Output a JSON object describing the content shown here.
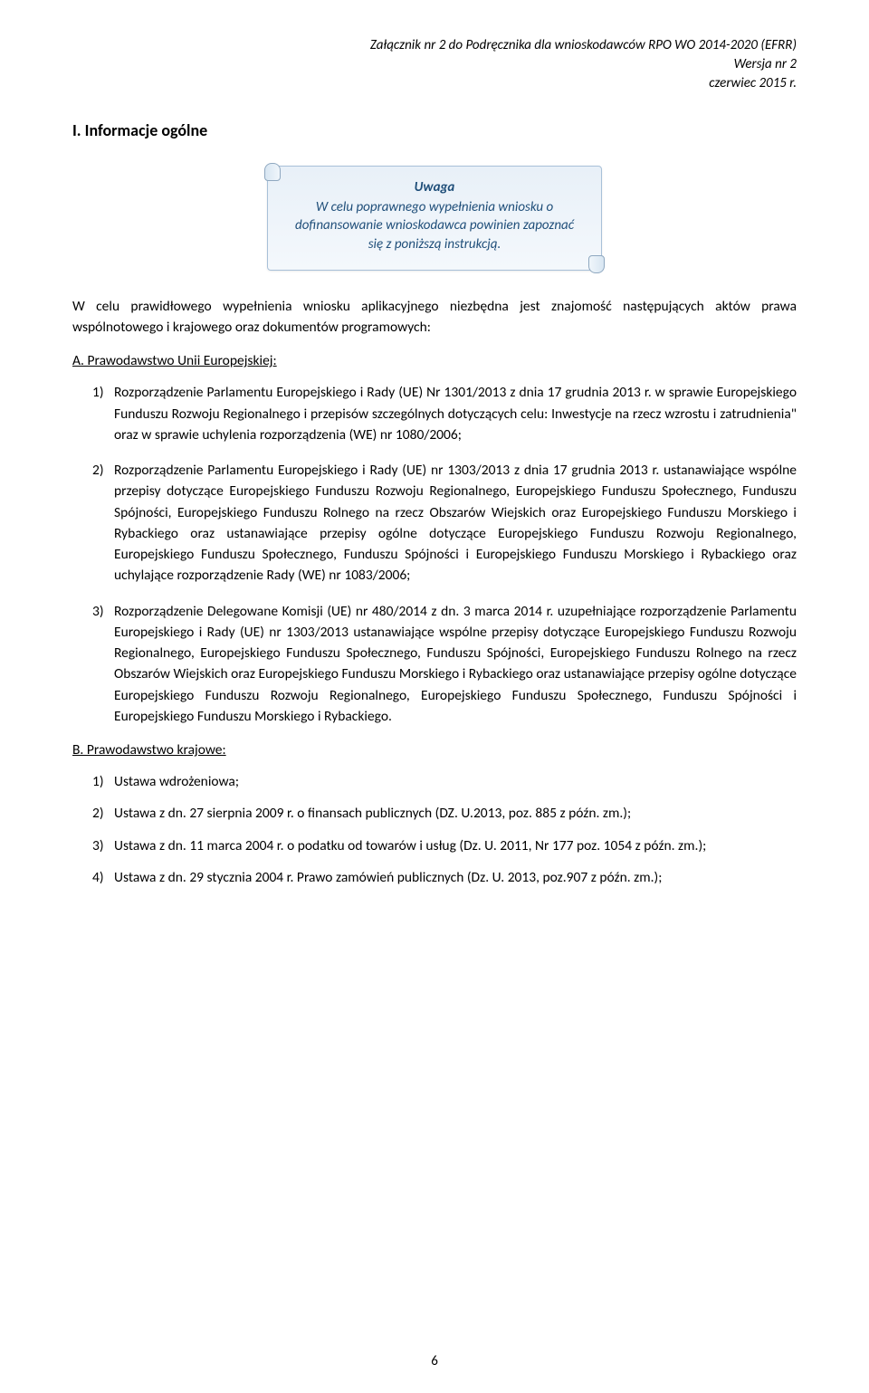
{
  "header": {
    "line1": "Załącznik nr 2 do Podręcznika dla wnioskodawców RPO WO 2014-2020 (EFRR)",
    "line2": "Wersja nr 2",
    "line3": "czerwiec 2015 r."
  },
  "section_title": "I.   Informacje ogólne",
  "scroll": {
    "title": "Uwaga",
    "body": "W celu poprawnego wypełnienia wniosku o dofinansowanie wnioskodawca powinien zapoznać się z poniższą instrukcją."
  },
  "intro": "W celu prawidłowego wypełnienia wniosku aplikacyjnego niezbędna jest znajomość następujących aktów prawa wspólnotowego i krajowego oraz dokumentów programowych:",
  "sections": {
    "a": {
      "heading": "A. Prawodawstwo Unii Europejskiej:",
      "items": [
        {
          "n": "1)",
          "text": "Rozporządzenie Parlamentu Europejskiego i Rady (UE) Nr 1301/2013 z dnia 17 grudnia 2013 r. w sprawie Europejskiego Funduszu Rozwoju Regionalnego i przepisów szczególnych dotyczących celu: Inwestycje na rzecz wzrostu i zatrudnienia\" oraz w sprawie uchylenia rozporządzenia (WE) nr 1080/2006;"
        },
        {
          "n": "2)",
          "text": "Rozporządzenie Parlamentu Europejskiego i Rady (UE) nr 1303/2013 z dnia 17 grudnia 2013 r. ustanawiające wspólne przepisy dotyczące Europejskiego Funduszu Rozwoju Regionalnego, Europejskiego Funduszu Społecznego, Funduszu Spójności, Europejskiego Funduszu Rolnego na rzecz Obszarów Wiejskich oraz Europejskiego Funduszu Morskiego i Rybackiego oraz ustanawiające przepisy ogólne dotyczące Europejskiego Funduszu Rozwoju Regionalnego, Europejskiego Funduszu Społecznego, Funduszu Spójności i Europejskiego Funduszu Morskiego i Rybackiego oraz uchylające rozporządzenie Rady (WE) nr 1083/2006;"
        },
        {
          "n": "3)",
          "text": "Rozporządzenie Delegowane Komisji (UE) nr 480/2014 z dn. 3 marca 2014 r. uzupełniające rozporządzenie Parlamentu Europejskiego i Rady (UE) nr 1303/2013 ustanawiające wspólne przepisy dotyczące Europejskiego Funduszu Rozwoju Regionalnego, Europejskiego Funduszu Społecznego, Funduszu Spójności, Europejskiego Funduszu Rolnego na rzecz Obszarów Wiejskich oraz Europejskiego Funduszu Morskiego i Rybackiego oraz ustanawiające przepisy ogólne dotyczące Europejskiego Funduszu Rozwoju Regionalnego, Europejskiego Funduszu Społecznego, Funduszu Spójności i Europejskiego Funduszu Morskiego i Rybackiego."
        }
      ]
    },
    "b": {
      "heading": "B. Prawodawstwo krajowe:",
      "items": [
        {
          "n": "1)",
          "text": "Ustawa wdrożeniowa;"
        },
        {
          "n": "2)",
          "text": "Ustawa z dn. 27 sierpnia 2009 r. o finansach publicznych (DZ. U.2013, poz. 885 z późn. zm.);"
        },
        {
          "n": "3)",
          "text": "Ustawa z dn. 11 marca 2004 r. o podatku od towarów i usług (Dz. U. 2011, Nr 177 poz. 1054 z późn. zm.);"
        },
        {
          "n": "4)",
          "text": "Ustawa z dn. 29 stycznia 2004 r. Prawo zamówień publicznych (Dz. U. 2013, poz.907 z późn. zm.);"
        }
      ]
    }
  },
  "page_number": "6",
  "colors": {
    "text": "#000000",
    "scroll_text": "#1f4e79",
    "scroll_bg_top": "#e8f0f8",
    "scroll_bg_bottom": "#f4f8fc",
    "scroll_border": "#a8c0d8",
    "background": "#ffffff"
  },
  "typography": {
    "body_fontsize_pt": 11,
    "header_fontsize_pt": 11,
    "title_fontsize_pt": 13,
    "font_family": "Calibri"
  }
}
